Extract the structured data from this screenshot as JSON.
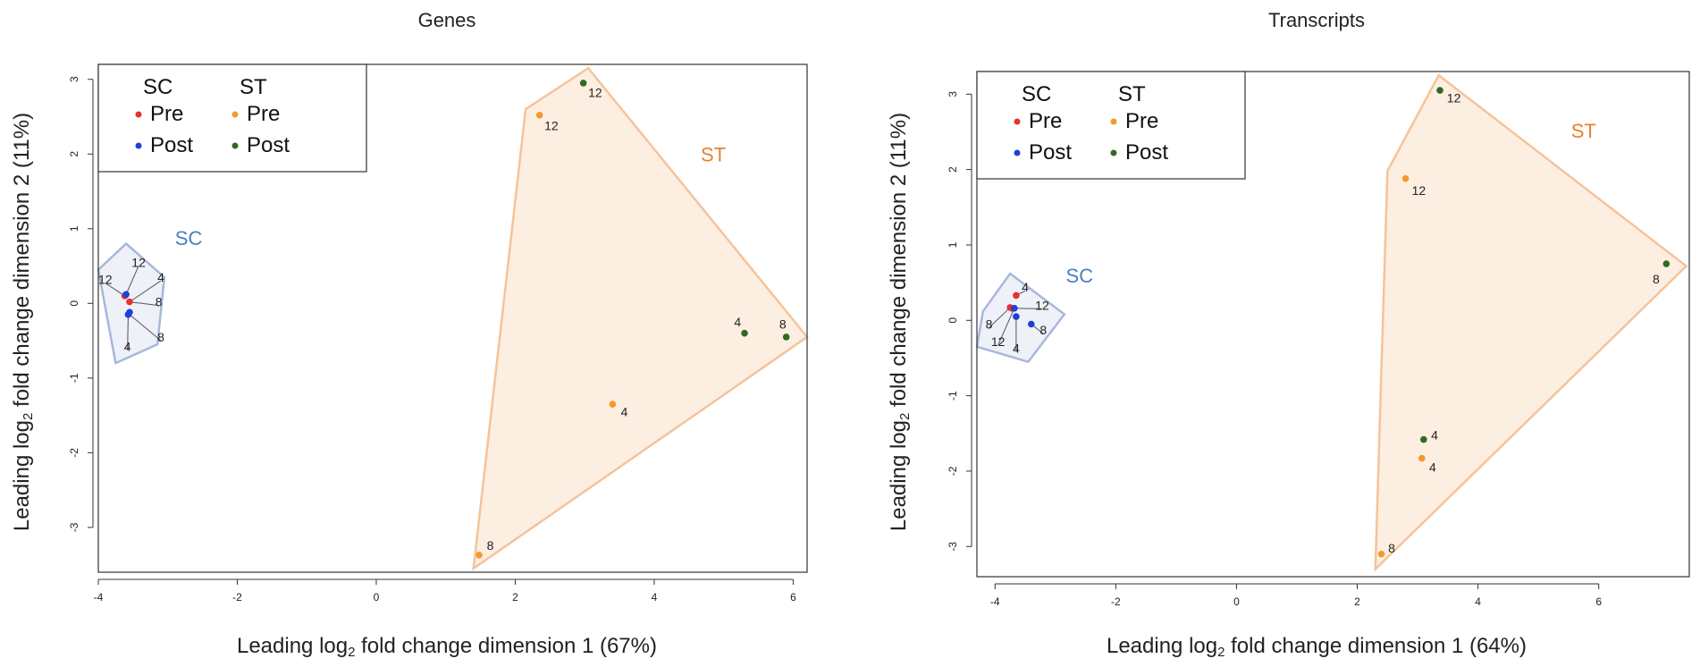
{
  "chart_data": [
    {
      "type": "scatter",
      "title": "Genes",
      "xlabel_prefix": "Leading log",
      "xlabel_sub": "2",
      "xlabel_suffix": " fold change dimension 1 (67%)",
      "ylabel_prefix": "Leading log",
      "ylabel_sub": "2",
      "ylabel_suffix": " fold change dimension 2 (11%)",
      "xlim": [
        -4.0,
        6.2
      ],
      "ylim": [
        -3.6,
        3.2
      ],
      "xticks": [
        -4,
        -2,
        0,
        2,
        4,
        6
      ],
      "yticks": [
        -3,
        -2,
        -1,
        0,
        1,
        2,
        3
      ],
      "legend": {
        "position": "top-left",
        "groups": [
          {
            "title": "SC",
            "entries": [
              {
                "label": "Pre",
                "color": "#e8322b"
              },
              {
                "label": "Post",
                "color": "#1f3fd6"
              }
            ]
          },
          {
            "title": "ST",
            "entries": [
              {
                "label": "Pre",
                "color": "#f39a2d"
              },
              {
                "label": "Post",
                "color": "#2e6b22"
              }
            ]
          }
        ]
      },
      "hulls": [
        {
          "name": "SC",
          "color": "#4a7fc1",
          "fill": "#eef1f8",
          "stroke": "#a7b8dc",
          "vertices": [
            [
              -3.6,
              0.8
            ],
            [
              -3.05,
              0.35
            ],
            [
              -3.15,
              -0.55
            ],
            [
              -3.75,
              -0.8
            ],
            [
              -4.0,
              0.45
            ]
          ],
          "label": {
            "text": "SC",
            "x": -2.7,
            "y": 0.78
          }
        },
        {
          "name": "ST",
          "color": "#e8822e",
          "fill": "#fdeee2",
          "stroke": "#f5c39a",
          "vertices": [
            [
              3.05,
              3.15
            ],
            [
              6.2,
              -0.45
            ],
            [
              1.4,
              -3.55
            ],
            [
              2.15,
              2.6
            ]
          ],
          "label": {
            "text": "ST",
            "x": 4.85,
            "y": 1.9
          }
        }
      ],
      "points": [
        {
          "group": "SC-Pre",
          "color": "#e8322b",
          "x": -3.62,
          "y": 0.1
        },
        {
          "group": "SC-Pre",
          "color": "#e8322b",
          "x": -3.55,
          "y": 0.02
        },
        {
          "group": "SC-Post",
          "color": "#1f3fd6",
          "x": -3.6,
          "y": 0.12
        },
        {
          "group": "SC-Post",
          "color": "#1f3fd6",
          "x": -3.55,
          "y": -0.12
        },
        {
          "group": "SC-Post",
          "color": "#1f3fd6",
          "x": -3.57,
          "y": -0.15
        },
        {
          "group": "ST-Pre",
          "color": "#f39a2d",
          "x": 2.35,
          "y": 2.52
        },
        {
          "group": "ST-Pre",
          "color": "#f39a2d",
          "x": 3.4,
          "y": -1.35
        },
        {
          "group": "ST-Pre",
          "color": "#f39a2d",
          "x": 1.48,
          "y": -3.37
        },
        {
          "group": "ST-Post",
          "color": "#2e6b22",
          "x": 2.98,
          "y": 2.95
        },
        {
          "group": "ST-Post",
          "color": "#2e6b22",
          "x": 5.3,
          "y": -0.4
        },
        {
          "group": "ST-Post",
          "color": "#2e6b22",
          "x": 5.9,
          "y": -0.45
        }
      ],
      "annotations": [
        {
          "text": "12",
          "x": -3.42,
          "y": 0.55,
          "ax": -3.6,
          "ay": 0.12
        },
        {
          "text": "12",
          "x": -3.9,
          "y": 0.32,
          "ax": -3.62,
          "ay": 0.1
        },
        {
          "text": "4",
          "x": -3.1,
          "y": 0.35,
          "ax": -3.55,
          "ay": 0.02
        },
        {
          "text": "8",
          "x": -3.13,
          "y": 0.02,
          "ax": -3.55,
          "ay": 0.02
        },
        {
          "text": "8",
          "x": -3.1,
          "y": -0.45,
          "ax": -3.55,
          "ay": -0.15
        },
        {
          "text": "4",
          "x": -3.58,
          "y": -0.58,
          "ax": -3.57,
          "ay": -0.15
        },
        {
          "text": "12",
          "x": 2.52,
          "y": 2.38,
          "ax": null,
          "ay": null
        },
        {
          "text": "12",
          "x": 3.15,
          "y": 2.82,
          "ax": null,
          "ay": null
        },
        {
          "text": "4",
          "x": 3.57,
          "y": -1.45,
          "ax": null,
          "ay": null
        },
        {
          "text": "8",
          "x": 1.64,
          "y": -3.24,
          "ax": null,
          "ay": null
        },
        {
          "text": "4",
          "x": 5.2,
          "y": -0.25,
          "ax": null,
          "ay": null
        },
        {
          "text": "8",
          "x": 5.85,
          "y": -0.28,
          "ax": null,
          "ay": null
        }
      ]
    },
    {
      "type": "scatter",
      "title": "Transcripts",
      "xlabel_prefix": "Leading log",
      "xlabel_sub": "2",
      "xlabel_suffix": " fold change dimension 1 (64%)",
      "ylabel_prefix": "Leading log",
      "ylabel_sub": "2",
      "ylabel_suffix": " fold change dimension 2 (11%)",
      "xlim": [
        -4.3,
        7.5
      ],
      "ylim": [
        -3.4,
        3.3
      ],
      "xticks": [
        -4,
        -2,
        0,
        2,
        4,
        6
      ],
      "yticks": [
        -3,
        -2,
        -1,
        0,
        1,
        2,
        3
      ],
      "legend": {
        "position": "top-left",
        "groups": [
          {
            "title": "SC",
            "entries": [
              {
                "label": "Pre",
                "color": "#e8322b"
              },
              {
                "label": "Post",
                "color": "#1f3fd6"
              }
            ]
          },
          {
            "title": "ST",
            "entries": [
              {
                "label": "Pre",
                "color": "#f39a2d"
              },
              {
                "label": "Post",
                "color": "#2e6b22"
              }
            ]
          }
        ]
      },
      "hulls": [
        {
          "name": "SC",
          "color": "#4a7fc1",
          "fill": "#eef1f8",
          "stroke": "#a7b8dc",
          "vertices": [
            [
              -3.75,
              0.62
            ],
            [
              -2.85,
              0.08
            ],
            [
              -3.45,
              -0.55
            ],
            [
              -4.3,
              -0.35
            ],
            [
              -4.2,
              0.12
            ]
          ],
          "label": {
            "text": "SC",
            "x": -2.6,
            "y": 0.5
          }
        },
        {
          "name": "ST",
          "color": "#e8822e",
          "fill": "#fdeee2",
          "stroke": "#f5c39a",
          "vertices": [
            [
              3.35,
              3.25
            ],
            [
              7.45,
              0.72
            ],
            [
              2.3,
              -3.3
            ],
            [
              2.5,
              1.98
            ]
          ],
          "label": {
            "text": "ST",
            "x": 5.75,
            "y": 2.42
          }
        }
      ],
      "points": [
        {
          "group": "SC-Pre",
          "color": "#e8322b",
          "x": -3.65,
          "y": 0.33
        },
        {
          "group": "SC-Pre",
          "color": "#e8322b",
          "x": -3.75,
          "y": 0.17
        },
        {
          "group": "SC-Pre",
          "color": "#e8322b",
          "x": -3.72,
          "y": 0.16
        },
        {
          "group": "SC-Post",
          "color": "#1f3fd6",
          "x": -3.68,
          "y": 0.16
        },
        {
          "group": "SC-Post",
          "color": "#1f3fd6",
          "x": -3.65,
          "y": 0.05
        },
        {
          "group": "SC-Post",
          "color": "#1f3fd6",
          "x": -3.4,
          "y": -0.05
        },
        {
          "group": "ST-Pre",
          "color": "#f39a2d",
          "x": 2.8,
          "y": 1.88
        },
        {
          "group": "ST-Pre",
          "color": "#f39a2d",
          "x": 3.07,
          "y": -1.83
        },
        {
          "group": "ST-Pre",
          "color": "#f39a2d",
          "x": 2.4,
          "y": -3.1
        },
        {
          "group": "ST-Post",
          "color": "#2e6b22",
          "x": 3.37,
          "y": 3.05
        },
        {
          "group": "ST-Post",
          "color": "#2e6b22",
          "x": 3.1,
          "y": -1.58
        },
        {
          "group": "ST-Post",
          "color": "#2e6b22",
          "x": 7.12,
          "y": 0.75
        }
      ],
      "annotations": [
        {
          "text": "4",
          "x": -3.5,
          "y": 0.44,
          "ax": -3.65,
          "ay": 0.33
        },
        {
          "text": "12",
          "x": -3.22,
          "y": 0.2,
          "ax": -3.72,
          "ay": 0.16
        },
        {
          "text": "8",
          "x": -4.1,
          "y": -0.05,
          "ax": -3.75,
          "ay": 0.17
        },
        {
          "text": "8",
          "x": -3.2,
          "y": -0.13,
          "ax": -3.4,
          "ay": -0.05
        },
        {
          "text": "12",
          "x": -3.95,
          "y": -0.28,
          "ax": -3.68,
          "ay": 0.16
        },
        {
          "text": "4",
          "x": -3.65,
          "y": -0.37,
          "ax": -3.65,
          "ay": 0.05
        },
        {
          "text": "12",
          "x": 3.6,
          "y": 2.95,
          "ax": null,
          "ay": null
        },
        {
          "text": "12",
          "x": 3.02,
          "y": 1.72,
          "ax": null,
          "ay": null
        },
        {
          "text": "8",
          "x": 6.95,
          "y": 0.55,
          "ax": null,
          "ay": null
        },
        {
          "text": "4",
          "x": 3.28,
          "y": -1.52,
          "ax": null,
          "ay": null
        },
        {
          "text": "4",
          "x": 3.25,
          "y": -1.95,
          "ax": null,
          "ay": null
        },
        {
          "text": "8",
          "x": 2.57,
          "y": -3.02,
          "ax": null,
          "ay": null
        }
      ]
    }
  ]
}
